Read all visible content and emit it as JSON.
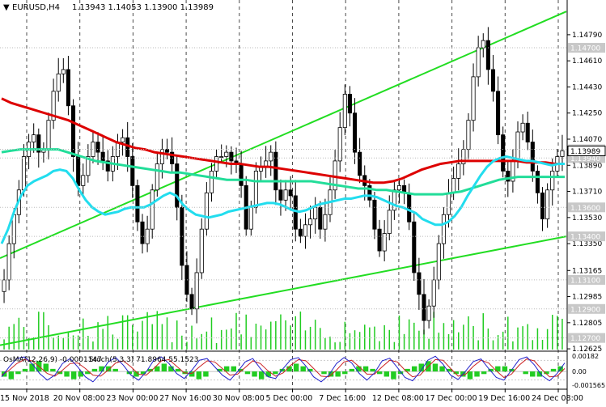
{
  "header": {
    "symbol": "EURUSD,H4",
    "ohlc": "1.13943 1.14053 1.13900 1.13989",
    "arrow": "▼"
  },
  "indicator_header": {
    "osma": "OsMA(12,26,9) -0.0001147",
    "stoch": "Stoch(5,3,3) 71.8964 55.1523"
  },
  "colors": {
    "background": "#ffffff",
    "candle": "#000000",
    "volume": "#22cc22",
    "ma_slow": "#dd0000",
    "ma_mid": "#22dd99",
    "ma_fast": "#22ddee",
    "channel": "#22dd22",
    "price_box": "#c8c8c8",
    "current_box": "#ffffff",
    "osma_hist": "#22cc22",
    "stoch_main": "#2222cc",
    "stoch_signal": "#cc2222"
  },
  "chart_data": [
    {
      "type": "candlestick",
      "title": "EURUSD,H4",
      "ylim": [
        1.1262,
        1.1494
      ],
      "y_ticks": [
        "1.14790",
        "1.14610",
        "1.14430",
        "1.14250",
        "1.14070",
        "1.13890",
        "1.13710",
        "1.13530",
        "1.13350",
        "1.13165",
        "1.12985",
        "1.12805",
        "1.12625"
      ],
      "price_levels": [
        "1.14700",
        "1.14000",
        "1.13940",
        "1.13600",
        "1.13400",
        "1.13100",
        "1.12900",
        "1.12700"
      ],
      "current_price": "1.13989",
      "x_labels": [
        "15 Nov 2018",
        "20 Nov 08:00",
        "23 Nov 00:00",
        "27 Nov 16:00",
        "30 Nov 08:00",
        "5 Dec 00:00",
        "7 Dec 16:00",
        "12 Dec 08:00",
        "17 Dec 00:00",
        "19 Dec 16:00",
        "24 Dec 08:00"
      ],
      "close": [
        1.131,
        1.1335,
        1.1355,
        1.1372,
        1.1395,
        1.1405,
        1.141,
        1.1398,
        1.14,
        1.142,
        1.144,
        1.1452,
        1.1455,
        1.143,
        1.1395,
        1.1375,
        1.1382,
        1.1395,
        1.1405,
        1.1398,
        1.1392,
        1.1385,
        1.1395,
        1.1405,
        1.1408,
        1.1395,
        1.1375,
        1.135,
        1.1335,
        1.1345,
        1.1372,
        1.139,
        1.14,
        1.1398,
        1.139,
        1.136,
        1.132,
        1.13,
        1.129,
        1.1315,
        1.1345,
        1.137,
        1.1385,
        1.1395,
        1.1395,
        1.1398,
        1.1392,
        1.139,
        1.1375,
        1.1345,
        1.136,
        1.1385,
        1.1388,
        1.1392,
        1.1398,
        1.1372,
        1.1365,
        1.1372,
        1.1368,
        1.1345,
        1.134,
        1.1348,
        1.1352,
        1.136,
        1.1345,
        1.1355,
        1.1372,
        1.1392,
        1.1415,
        1.1438,
        1.1425,
        1.1398,
        1.1382,
        1.1375,
        1.1365,
        1.1345,
        1.133,
        1.1342,
        1.1358,
        1.1372,
        1.1375,
        1.137,
        1.135,
        1.1315,
        1.13,
        1.1282,
        1.1292,
        1.131,
        1.1335,
        1.1355,
        1.137,
        1.138,
        1.139,
        1.14,
        1.142,
        1.145,
        1.147,
        1.1475,
        1.1455,
        1.144,
        1.141,
        1.1385,
        1.1378,
        1.1392,
        1.1412,
        1.1418,
        1.1405,
        1.1385,
        1.137,
        1.1352,
        1.1372,
        1.1385,
        1.1395,
        1.1399
      ],
      "ma_fast": [
        1.1335,
        1.1345,
        1.1358,
        1.1368,
        1.1375,
        1.1378,
        1.138,
        1.1382,
        1.1385,
        1.1386,
        1.1385,
        1.138,
        1.1372,
        1.1365,
        1.136,
        1.1357,
        1.1355,
        1.1356,
        1.1357,
        1.1359,
        1.136,
        1.136,
        1.136,
        1.1362,
        1.1365,
        1.1368,
        1.137,
        1.1368,
        1.1362,
        1.1358,
        1.1355,
        1.1354,
        1.1353,
        1.1354,
        1.1355,
        1.1357,
        1.1358,
        1.1359,
        1.136,
        1.1361,
        1.1362,
        1.1363,
        1.1363,
        1.1362,
        1.136,
        1.1358,
        1.1357,
        1.1358,
        1.136,
        1.1362,
        1.1363,
        1.1364,
        1.1365,
        1.1366,
        1.1366,
        1.1367,
        1.1368,
        1.1368,
        1.1367,
        1.1365,
        1.1363,
        1.1361,
        1.136,
        1.1358,
        1.1356,
        1.1352,
        1.135,
        1.1348,
        1.1348,
        1.135,
        1.1354,
        1.136,
        1.1368,
        1.1375,
        1.1382,
        1.1388,
        1.1392,
        1.1394,
        1.1395,
        1.1394,
        1.1393,
        1.1392,
        1.1392,
        1.1391,
        1.139,
        1.1389,
        1.139,
        1.139
      ],
      "ma_mid": [
        1.1398,
        1.1399,
        1.14,
        1.14,
        1.14,
        1.14,
        1.14,
        1.1398,
        1.1396,
        1.1394,
        1.1392,
        1.1391,
        1.139,
        1.1389,
        1.1388,
        1.1387,
        1.1386,
        1.1385,
        1.1384,
        1.1384,
        1.1383,
        1.1382,
        1.1381,
        1.138,
        1.1379,
        1.1379,
        1.1379,
        1.1378,
        1.1378,
        1.1378,
        1.1378,
        1.1378,
        1.1378,
        1.1378,
        1.1377,
        1.1376,
        1.1375,
        1.1374,
        1.1373,
        1.1373,
        1.1372,
        1.1372,
        1.1371,
        1.137,
        1.1369,
        1.1369,
        1.1369,
        1.1369,
        1.137,
        1.1371,
        1.1373,
        1.1375,
        1.1377,
        1.1379,
        1.138,
        1.1381,
        1.1381,
        1.1381,
        1.1381,
        1.1381,
        1.1381
      ],
      "ma_slow": [
        1.1435,
        1.1432,
        1.143,
        1.1428,
        1.1426,
        1.1424,
        1.1422,
        1.142,
        1.1417,
        1.1414,
        1.1411,
        1.1408,
        1.1405,
        1.1403,
        1.1401,
        1.14,
        1.1398,
        1.1397,
        1.1396,
        1.1395,
        1.1394,
        1.1393,
        1.1392,
        1.1391,
        1.139,
        1.139,
        1.1389,
        1.1388,
        1.1388,
        1.1387,
        1.1386,
        1.1385,
        1.1384,
        1.1383,
        1.1382,
        1.1381,
        1.138,
        1.1379,
        1.1378,
        1.1377,
        1.1377,
        1.1378,
        1.138,
        1.1383,
        1.1386,
        1.1388,
        1.139,
        1.1391,
        1.1392,
        1.1392,
        1.1392,
        1.1392,
        1.1392,
        1.1392,
        1.1392,
        1.1391,
        1.1391,
        1.1391,
        1.139,
        1.139
      ],
      "channel_lower": [
        [
          0,
          1.1265
        ],
        [
          1,
          1.134
        ]
      ],
      "channel_upper": [
        [
          0,
          1.1325
        ],
        [
          1,
          1.1495
        ]
      ]
    },
    {
      "type": "bar",
      "title": "OsMA(12,26,9) / Stoch(5,3,3)",
      "ylim": [
        -0.00156,
        0.00182
      ],
      "y_ticks": [
        "0.00182",
        "0.00",
        "-0.001565"
      ],
      "stoch_levels": [
        "80",
        "20"
      ],
      "osma": [
        -2,
        -3,
        -1,
        1,
        3,
        4,
        3,
        1,
        -1,
        -2,
        -3,
        -2,
        -1,
        1,
        2,
        2,
        1,
        0,
        -1,
        -2,
        -1,
        1,
        2,
        3,
        2,
        1,
        -1,
        -2,
        -3,
        -2,
        0,
        1,
        2,
        2,
        1,
        -1,
        -2,
        -3,
        -2,
        -1,
        1,
        2,
        3,
        2,
        1,
        0,
        -1,
        -2,
        -2,
        -1,
        1,
        2,
        2,
        1,
        -1,
        -2,
        -3,
        -1,
        1,
        2,
        3,
        4,
        3,
        2,
        1,
        -1,
        -2,
        -3,
        -2,
        -1,
        1,
        2,
        2,
        1,
        0,
        -1,
        -2,
        -2,
        -1,
        1,
        2
      ],
      "stoch_main": [
        30,
        60,
        85,
        90,
        70,
        40,
        20,
        35,
        70,
        85,
        60,
        30,
        15,
        40,
        75,
        88,
        65,
        35,
        20,
        45,
        80,
        90,
        70,
        40,
        25,
        50,
        80,
        85,
        60,
        35,
        20,
        45,
        75,
        85,
        55,
        30,
        25,
        55,
        82,
        88,
        62,
        30,
        15,
        35,
        70,
        88,
        72,
        40,
        20,
        42,
        78,
        86,
        58,
        28,
        18,
        45,
        80,
        92,
        68,
        35,
        22,
        48,
        76,
        84,
        55,
        28,
        20,
        50,
        82,
        90,
        66,
        34,
        18,
        40,
        72
      ],
      "stoch_signal": [
        35,
        50,
        70,
        82,
        78,
        60,
        40,
        32,
        50,
        70,
        72,
        55,
        35,
        32,
        50,
        72,
        78,
        60,
        38,
        35,
        55,
        78,
        82,
        62,
        42,
        40,
        60,
        78,
        75,
        55,
        35,
        38,
        58,
        78,
        70,
        48,
        32,
        42,
        65,
        82,
        78,
        55,
        32,
        30,
        50,
        75,
        80,
        60,
        38,
        38,
        60,
        80,
        75,
        50,
        30,
        35,
        60,
        82,
        80,
        55,
        32,
        38,
        62,
        80,
        72,
        48,
        28,
        38,
        65,
        84,
        78,
        52,
        30,
        32,
        55
      ]
    }
  ]
}
